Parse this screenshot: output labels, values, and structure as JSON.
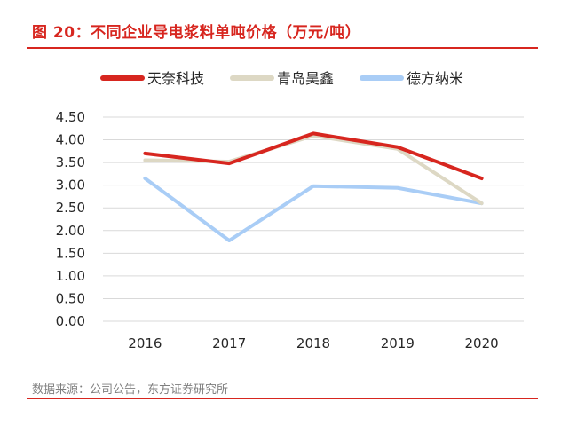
{
  "title": "图 20：不同企业导电浆料单吨价格（万元/吨）",
  "source": "数据来源：公司公告，东方证券研究所",
  "chart_data": {
    "type": "line",
    "x": [
      "2016",
      "2017",
      "2018",
      "2019",
      "2020"
    ],
    "ylim": [
      0,
      4.5
    ],
    "yticks": [
      "0.00",
      "0.50",
      "1.00",
      "1.50",
      "2.00",
      "2.50",
      "3.00",
      "3.50",
      "4.00",
      "4.50"
    ],
    "grid": true,
    "legend_position": "top",
    "series": [
      {
        "name": "天奈科技",
        "color": "#d7261f",
        "values": [
          3.7,
          3.48,
          4.14,
          3.84,
          3.15
        ]
      },
      {
        "name": "青岛昊鑫",
        "color": "#ddd8c4",
        "values": [
          3.55,
          3.52,
          4.09,
          3.8,
          2.6
        ]
      },
      {
        "name": "德方纳米",
        "color": "#a9cdf6",
        "values": [
          3.15,
          1.78,
          2.98,
          2.94,
          2.6
        ]
      }
    ]
  }
}
